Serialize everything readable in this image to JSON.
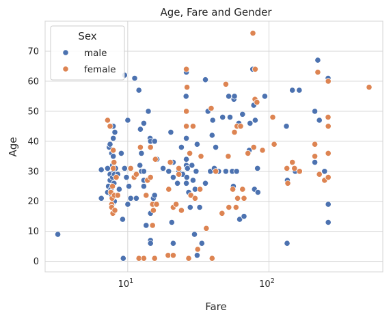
{
  "chart_data": {
    "type": "scatter",
    "title": "Age, Fare and Gender",
    "xlabel": "Fare",
    "ylabel": "Age",
    "xscale": "log",
    "xlim": [
      2.6,
      640
    ],
    "ylim": [
      -3.5,
      80
    ],
    "x_ticks": [
      {
        "value": 10,
        "base": "10",
        "exp": "1"
      },
      {
        "value": 100,
        "base": "10",
        "exp": "2"
      }
    ],
    "y_ticks": [
      0,
      10,
      20,
      30,
      40,
      50,
      60,
      70
    ],
    "grid": true,
    "legend": {
      "title": "Sex",
      "position": "top-left",
      "entries": [
        "male",
        "female"
      ]
    },
    "colors": {
      "male": "#4c72b0",
      "female": "#dd8452",
      "grid": "#d5d5d5",
      "text": "#262626"
    },
    "series": [
      {
        "name": "male",
        "points": [
          [
            3.2,
            9
          ],
          [
            6.5,
            30.5
          ],
          [
            6.5,
            21
          ],
          [
            7.2,
            31
          ],
          [
            7.2,
            23
          ],
          [
            7.3,
            25
          ],
          [
            7.4,
            38
          ],
          [
            7.5,
            39
          ],
          [
            7.5,
            29
          ],
          [
            7.5,
            27
          ],
          [
            7.6,
            24
          ],
          [
            7.7,
            22
          ],
          [
            7.7,
            36
          ],
          [
            7.8,
            28
          ],
          [
            7.8,
            32
          ],
          [
            7.8,
            19
          ],
          [
            7.9,
            35
          ],
          [
            7.9,
            41
          ],
          [
            7.9,
            45
          ],
          [
            8.0,
            26
          ],
          [
            8.0,
            30
          ],
          [
            8.0,
            33
          ],
          [
            8.05,
            20
          ],
          [
            8.05,
            29
          ],
          [
            8.1,
            43
          ],
          [
            8.1,
            17
          ],
          [
            8.2,
            31
          ],
          [
            8.3,
            22
          ],
          [
            8.5,
            29
          ],
          [
            8.7,
            24
          ],
          [
            9.0,
            36
          ],
          [
            9.2,
            14
          ],
          [
            9.3,
            1
          ],
          [
            9.5,
            62
          ],
          [
            9.5,
            31
          ],
          [
            9.8,
            28
          ],
          [
            10.0,
            47
          ],
          [
            10.0,
            19
          ],
          [
            10.2,
            25
          ],
          [
            10.5,
            21
          ],
          [
            11.2,
            61
          ],
          [
            11.5,
            21
          ],
          [
            12.0,
            57
          ],
          [
            12.2,
            32
          ],
          [
            12.3,
            44
          ],
          [
            12.5,
            36
          ],
          [
            12.5,
            30
          ],
          [
            12.9,
            1
          ],
          [
            13.0,
            27
          ],
          [
            13.0,
            46
          ],
          [
            13.0,
            25
          ],
          [
            13.0,
            30
          ],
          [
            13.5,
            12
          ],
          [
            14.0,
            50
          ],
          [
            14.4,
            41
          ],
          [
            14.5,
            40
          ],
          [
            14.5,
            16
          ],
          [
            14.5,
            7
          ],
          [
            14.5,
            6
          ],
          [
            15.2,
            21
          ],
          [
            15.5,
            22
          ],
          [
            15.5,
            40
          ],
          [
            16.1,
            34
          ],
          [
            17.8,
            31
          ],
          [
            19.5,
            30
          ],
          [
            20.2,
            43
          ],
          [
            20.5,
            13
          ],
          [
            21.0,
            6
          ],
          [
            21.0,
            33
          ],
          [
            21.0,
            28
          ],
          [
            22.5,
            26
          ],
          [
            23.0,
            30
          ],
          [
            24.0,
            38
          ],
          [
            24.5,
            29
          ],
          [
            25.9,
            55
          ],
          [
            26.0,
            63
          ],
          [
            26.0,
            41
          ],
          [
            26.0,
            34
          ],
          [
            26.0,
            26
          ],
          [
            26.0,
            32
          ],
          [
            26.2,
            28
          ],
          [
            26.5,
            31
          ],
          [
            27.0,
            23
          ],
          [
            27.7,
            18
          ],
          [
            28.5,
            32
          ],
          [
            29.0,
            27
          ],
          [
            29.7,
            9
          ],
          [
            30.0,
            24
          ],
          [
            30.5,
            30
          ],
          [
            31.0,
            39
          ],
          [
            31.0,
            2
          ],
          [
            32.3,
            18
          ],
          [
            33.5,
            6
          ],
          [
            35.5,
            26
          ],
          [
            35.5,
            60.5
          ],
          [
            37.0,
            50
          ],
          [
            38.5,
            30
          ],
          [
            39.6,
            42
          ],
          [
            40.0,
            47
          ],
          [
            41.0,
            31
          ],
          [
            42.0,
            38
          ],
          [
            44.0,
            30
          ],
          [
            47.0,
            48
          ],
          [
            49.5,
            30
          ],
          [
            51.9,
            55
          ],
          [
            53.0,
            48
          ],
          [
            55.0,
            30
          ],
          [
            56.0,
            25
          ],
          [
            56.5,
            54
          ],
          [
            57.0,
            55
          ],
          [
            59.0,
            30
          ],
          [
            61.2,
            46
          ],
          [
            62.0,
            14
          ],
          [
            65.0,
            49
          ],
          [
            66.6,
            15
          ],
          [
            72.5,
            37
          ],
          [
            73.5,
            46
          ],
          [
            76.7,
            64
          ],
          [
            78.0,
            52
          ],
          [
            79.0,
            24
          ],
          [
            80.0,
            47
          ],
          [
            83.0,
            31
          ],
          [
            83.5,
            23
          ],
          [
            93.5,
            55
          ],
          [
            134.5,
            6
          ],
          [
            133.0,
            45
          ],
          [
            135.0,
            27
          ],
          [
            146.5,
            57
          ],
          [
            153.5,
            30
          ],
          [
            164.0,
            57
          ],
          [
            211.3,
            50
          ],
          [
            211.3,
            33
          ],
          [
            221.8,
            67
          ],
          [
            227.5,
            47
          ],
          [
            262.4,
            61
          ],
          [
            263.0,
            13
          ],
          [
            263.0,
            19
          ],
          [
            247.5,
            30
          ]
        ]
      },
      {
        "name": "female",
        "points": [
          [
            7.2,
            47
          ],
          [
            7.5,
            45
          ],
          [
            7.6,
            23
          ],
          [
            7.7,
            19
          ],
          [
            7.7,
            18
          ],
          [
            7.75,
            21
          ],
          [
            7.8,
            25
          ],
          [
            7.85,
            16
          ],
          [
            7.9,
            37
          ],
          [
            7.9,
            31
          ],
          [
            8.0,
            33
          ],
          [
            8.05,
            22
          ],
          [
            8.1,
            17
          ],
          [
            8.3,
            28
          ],
          [
            8.5,
            22
          ],
          [
            10.5,
            31
          ],
          [
            11.1,
            28
          ],
          [
            11.5,
            29
          ],
          [
            12.0,
            1
          ],
          [
            12.3,
            38
          ],
          [
            13.0,
            1
          ],
          [
            13.5,
            22
          ],
          [
            13.8,
            27
          ],
          [
            14.5,
            38
          ],
          [
            14.5,
            28
          ],
          [
            15.0,
            12
          ],
          [
            15.0,
            19
          ],
          [
            15.2,
            17
          ],
          [
            15.5,
            1
          ],
          [
            15.7,
            34
          ],
          [
            16.0,
            19
          ],
          [
            19.3,
            2
          ],
          [
            19.5,
            24
          ],
          [
            20.0,
            33
          ],
          [
            21.0,
            2
          ],
          [
            21.0,
            18
          ],
          [
            22.0,
            19
          ],
          [
            23.0,
            31
          ],
          [
            23.0,
            29
          ],
          [
            24.0,
            17
          ],
          [
            26.0,
            50
          ],
          [
            26.0,
            64
          ],
          [
            26.0,
            45
          ],
          [
            26.3,
            58
          ],
          [
            27.0,
            1
          ],
          [
            27.5,
            36
          ],
          [
            28.0,
            22
          ],
          [
            29.0,
            45
          ],
          [
            30.0,
            21
          ],
          [
            31.3,
            4
          ],
          [
            32.5,
            24
          ],
          [
            33.0,
            35
          ],
          [
            36.0,
            11
          ],
          [
            39.0,
            51
          ],
          [
            39.6,
            1
          ],
          [
            42.0,
            30
          ],
          [
            46.5,
            16
          ],
          [
            49.5,
            59
          ],
          [
            51.5,
            35
          ],
          [
            52.0,
            18
          ],
          [
            55.5,
            24
          ],
          [
            57.0,
            43
          ],
          [
            58.5,
            18
          ],
          [
            59.4,
            45
          ],
          [
            60.0,
            21
          ],
          [
            63.0,
            45
          ],
          [
            65.0,
            24
          ],
          [
            66.6,
            21
          ],
          [
            71.0,
            36
          ],
          [
            77.0,
            76
          ],
          [
            78.0,
            38
          ],
          [
            79.6,
            54
          ],
          [
            80.0,
            64
          ],
          [
            82.2,
            53
          ],
          [
            90.0,
            37
          ],
          [
            106.4,
            48
          ],
          [
            108.9,
            39
          ],
          [
            134.0,
            31
          ],
          [
            136.0,
            26
          ],
          [
            146.5,
            33
          ],
          [
            151.6,
            31
          ],
          [
            164.9,
            30
          ],
          [
            211.3,
            39
          ],
          [
            211.3,
            35
          ],
          [
            221.8,
            63
          ],
          [
            227.5,
            29
          ],
          [
            247.5,
            27
          ],
          [
            262.4,
            48
          ],
          [
            263.0,
            45
          ],
          [
            263.0,
            36
          ],
          [
            263.0,
            28
          ],
          [
            263.0,
            60
          ],
          [
            512.3,
            58
          ]
        ]
      }
    ]
  }
}
